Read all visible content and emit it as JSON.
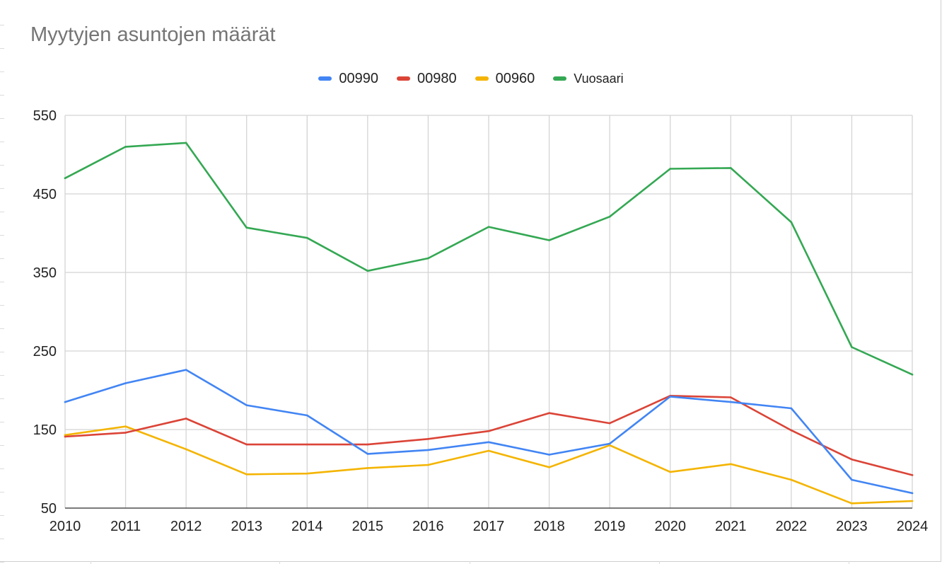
{
  "chart_data": {
    "type": "line",
    "title": "Myytyjen asuntojen määrät",
    "xlabel": "",
    "ylabel": "",
    "x": [
      "2010",
      "2011",
      "2012",
      "2013",
      "2014",
      "2015",
      "2016",
      "2017",
      "2018",
      "2019",
      "2020",
      "2021",
      "2022",
      "2023",
      "2024"
    ],
    "ylim": [
      50,
      550
    ],
    "yticks": [
      50,
      150,
      250,
      350,
      450,
      550
    ],
    "grid": true,
    "legend_position": "top-center",
    "series": [
      {
        "name": "00990",
        "color": "#4285f4",
        "values": [
          185,
          209,
          226,
          181,
          168,
          119,
          124,
          134,
          118,
          132,
          192,
          185,
          177,
          86,
          69
        ]
      },
      {
        "name": "00980",
        "color": "#db4437",
        "values": [
          141,
          146,
          164,
          131,
          131,
          131,
          138,
          148,
          171,
          158,
          193,
          191,
          149,
          112,
          92
        ]
      },
      {
        "name": "00960",
        "color": "#f4b400",
        "values": [
          143,
          154,
          125,
          93,
          94,
          101,
          105,
          123,
          102,
          130,
          96,
          106,
          86,
          56,
          59
        ]
      },
      {
        "name": "Vuosaari",
        "color": "#34a853",
        "values": [
          470,
          510,
          515,
          407,
          394,
          352,
          368,
          408,
          391,
          421,
          482,
          483,
          414,
          255,
          220
        ]
      }
    ]
  }
}
